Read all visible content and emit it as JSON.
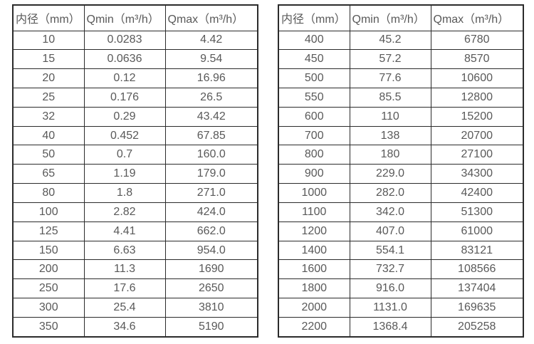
{
  "tables": [
    {
      "headers": [
        "内径（mm）",
        "Qmin（m³/h）",
        "Qmax（m³/h）"
      ],
      "rows": [
        [
          "10",
          "0.0283",
          "4.42"
        ],
        [
          "15",
          "0.0636",
          "9.54"
        ],
        [
          "20",
          "0.12",
          "16.96"
        ],
        [
          "25",
          "0.176",
          "26.5"
        ],
        [
          "32",
          "0.29",
          "43.42"
        ],
        [
          "40",
          "0.452",
          "67.85"
        ],
        [
          "50",
          "0.7",
          "160.0"
        ],
        [
          "65",
          "1.19",
          "179.0"
        ],
        [
          "80",
          "1.8",
          "271.0"
        ],
        [
          "100",
          "2.82",
          "424.0"
        ],
        [
          "125",
          "4.41",
          "662.0"
        ],
        [
          "150",
          "6.63",
          "954.0"
        ],
        [
          "200",
          "11.3",
          "1690"
        ],
        [
          "250",
          "17.6",
          "2650"
        ],
        [
          "300",
          "25.4",
          "3810"
        ],
        [
          "350",
          "34.6",
          "5190"
        ]
      ]
    },
    {
      "headers": [
        "内径（mm）",
        "Qmin（m³/h）",
        "Qmax（m³/h）"
      ],
      "rows": [
        [
          "400",
          "45.2",
          "6780"
        ],
        [
          "450",
          "57.2",
          "8570"
        ],
        [
          "500",
          "77.6",
          "10600"
        ],
        [
          "550",
          "85.5",
          "12800"
        ],
        [
          "600",
          "110",
          "15200"
        ],
        [
          "700",
          "138",
          "20700"
        ],
        [
          "800",
          "180",
          "27100"
        ],
        [
          "900",
          "229.0",
          "34300"
        ],
        [
          "1000",
          "282.0",
          "42400"
        ],
        [
          "1100",
          "342.0",
          "51300"
        ],
        [
          "1200",
          "407.0",
          "61000"
        ],
        [
          "1400",
          "554.1",
          "83121"
        ],
        [
          "1600",
          "732.7",
          "108566"
        ],
        [
          "1800",
          "916.0",
          "137404"
        ],
        [
          "2000",
          "1131.0",
          "169635"
        ],
        [
          "2200",
          "1368.4",
          "205258"
        ]
      ]
    }
  ],
  "colors": {
    "text": "#595959",
    "border": "#2b2b2b",
    "background": "#ffffff"
  }
}
